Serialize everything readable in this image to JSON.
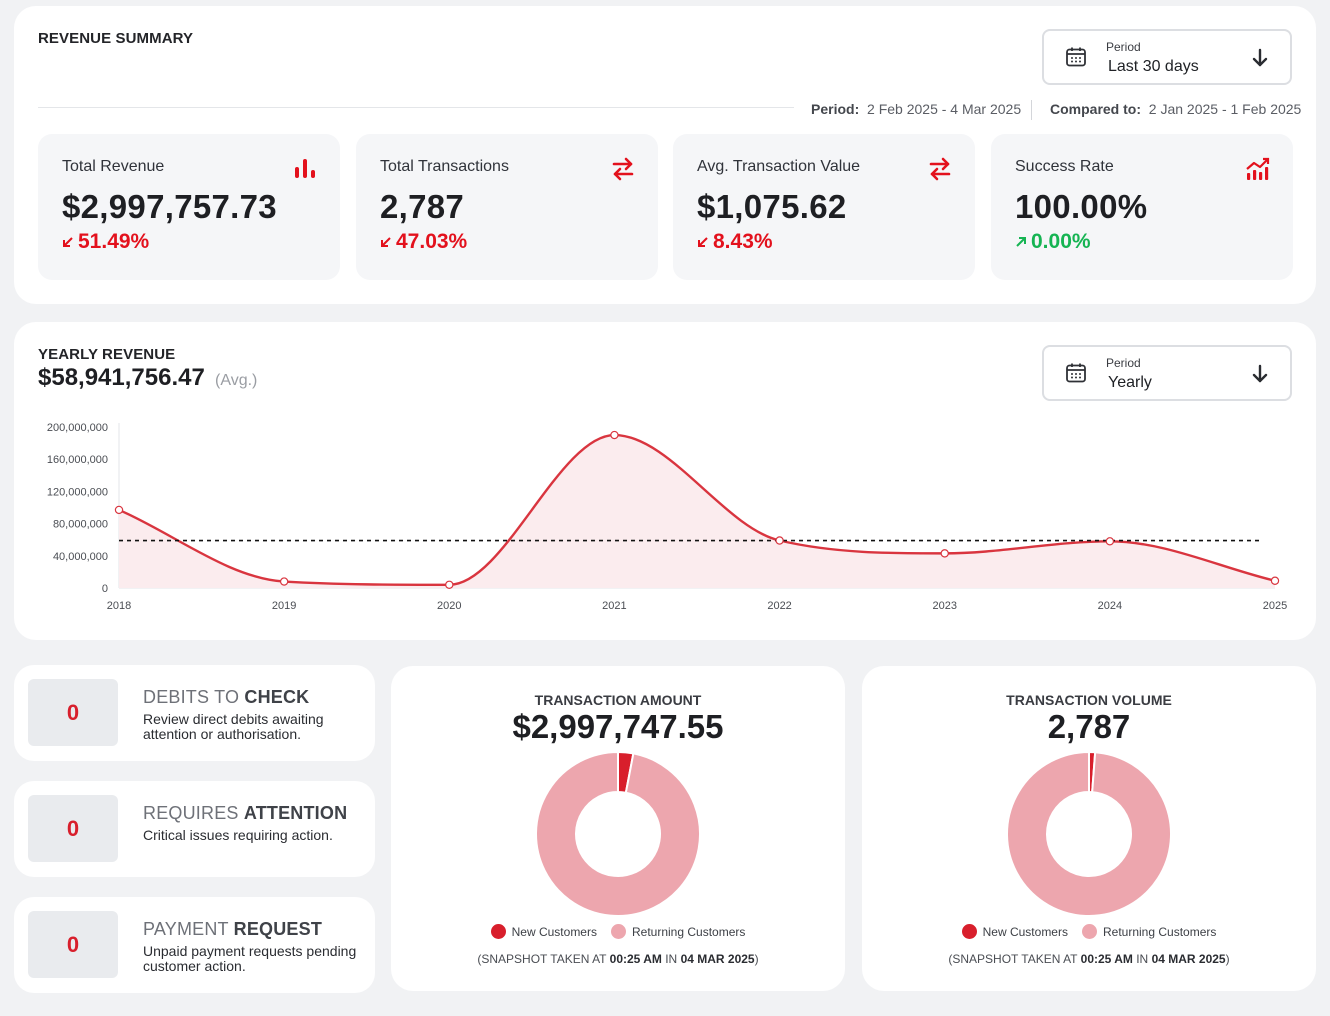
{
  "colors": {
    "accent": "#e3111d",
    "positive": "#16b453",
    "line": "#d9353f",
    "returning": "#eda6ae",
    "new": "#d81f2c"
  },
  "summary": {
    "title": "REVENUE SUMMARY",
    "period_button": {
      "label": "Period",
      "value": "Last 30 days",
      "icon": "calendar-icon"
    },
    "period_label": "Period:",
    "period_value": "2 Feb 2025 - 4 Mar 2025",
    "compared_label": "Compared to:",
    "compared_value": "2 Jan 2025 - 1 Feb 2025",
    "stats": [
      {
        "label": "Total Revenue",
        "value": "$2,997,757.73",
        "change": "51.49%",
        "direction": "down",
        "icon": "bar-chart-icon"
      },
      {
        "label": "Total Transactions",
        "value": "2,787",
        "change": "47.03%",
        "direction": "down",
        "icon": "swap-arrows-icon"
      },
      {
        "label": "Avg. Transaction Value",
        "value": "$1,075.62",
        "change": "8.43%",
        "direction": "down",
        "icon": "swap-arrows-icon"
      },
      {
        "label": "Success Rate",
        "value": "100.00%",
        "change": "0.00%",
        "direction": "up",
        "icon": "trend-chart-icon"
      }
    ]
  },
  "yearly": {
    "title": "YEARLY REVENUE",
    "value": "$58,941,756.47",
    "avg_label": "(Avg.)",
    "period_button": {
      "label": "Period",
      "value": "Yearly",
      "icon": "calendar-icon"
    }
  },
  "chart_data": {
    "type": "area",
    "x": [
      "2018",
      "2019",
      "2020",
      "2021",
      "2022",
      "2023",
      "2024",
      "2025"
    ],
    "series": [
      {
        "values": [
          97000000,
          8000000,
          4000000,
          190000000,
          59000000,
          43000000,
          58000000,
          9000000
        ]
      }
    ],
    "average_line": 58941756.47,
    "ylim": [
      0,
      200000000
    ],
    "yticks": [
      "0",
      "40,000,000",
      "80,000,000",
      "120,000,000",
      "160,000,000",
      "200,000,000"
    ],
    "ytick_values": [
      0,
      40000000,
      80000000,
      120000000,
      160000000,
      200000000
    ],
    "grid": false,
    "smooth": true
  },
  "info_cards": [
    {
      "count": "0",
      "title_light": "DEBITS TO ",
      "title_bold": "CHECK",
      "desc": "Review direct debits awaiting attention or authorisation."
    },
    {
      "count": "0",
      "title_light": "REQUIRES ",
      "title_bold": "ATTENTION",
      "desc": "Critical issues requiring action."
    },
    {
      "count": "0",
      "title_light": "PAYMENT ",
      "title_bold": "REQUEST",
      "desc": "Unpaid payment requests pending customer action."
    }
  ],
  "donuts": [
    {
      "title": "TRANSACTION AMOUNT",
      "value": "$2,997,747.55",
      "new_fraction": 0.03,
      "legend_new": "New Customers",
      "legend_returning": "Returning Customers",
      "snapshot_prefix": "(SNAPSHOT TAKEN AT ",
      "snapshot_time": "00:25 AM",
      "snapshot_mid": " IN ",
      "snapshot_date": "04 MAR 2025",
      "snapshot_suffix": ")"
    },
    {
      "title": "TRANSACTION VOLUME",
      "value": "2,787",
      "new_fraction": 0.012,
      "legend_new": "New Customers",
      "legend_returning": "Returning Customers",
      "snapshot_prefix": "(SNAPSHOT TAKEN AT ",
      "snapshot_time": "00:25 AM",
      "snapshot_mid": " IN ",
      "snapshot_date": "04 MAR 2025",
      "snapshot_suffix": ")"
    }
  ]
}
